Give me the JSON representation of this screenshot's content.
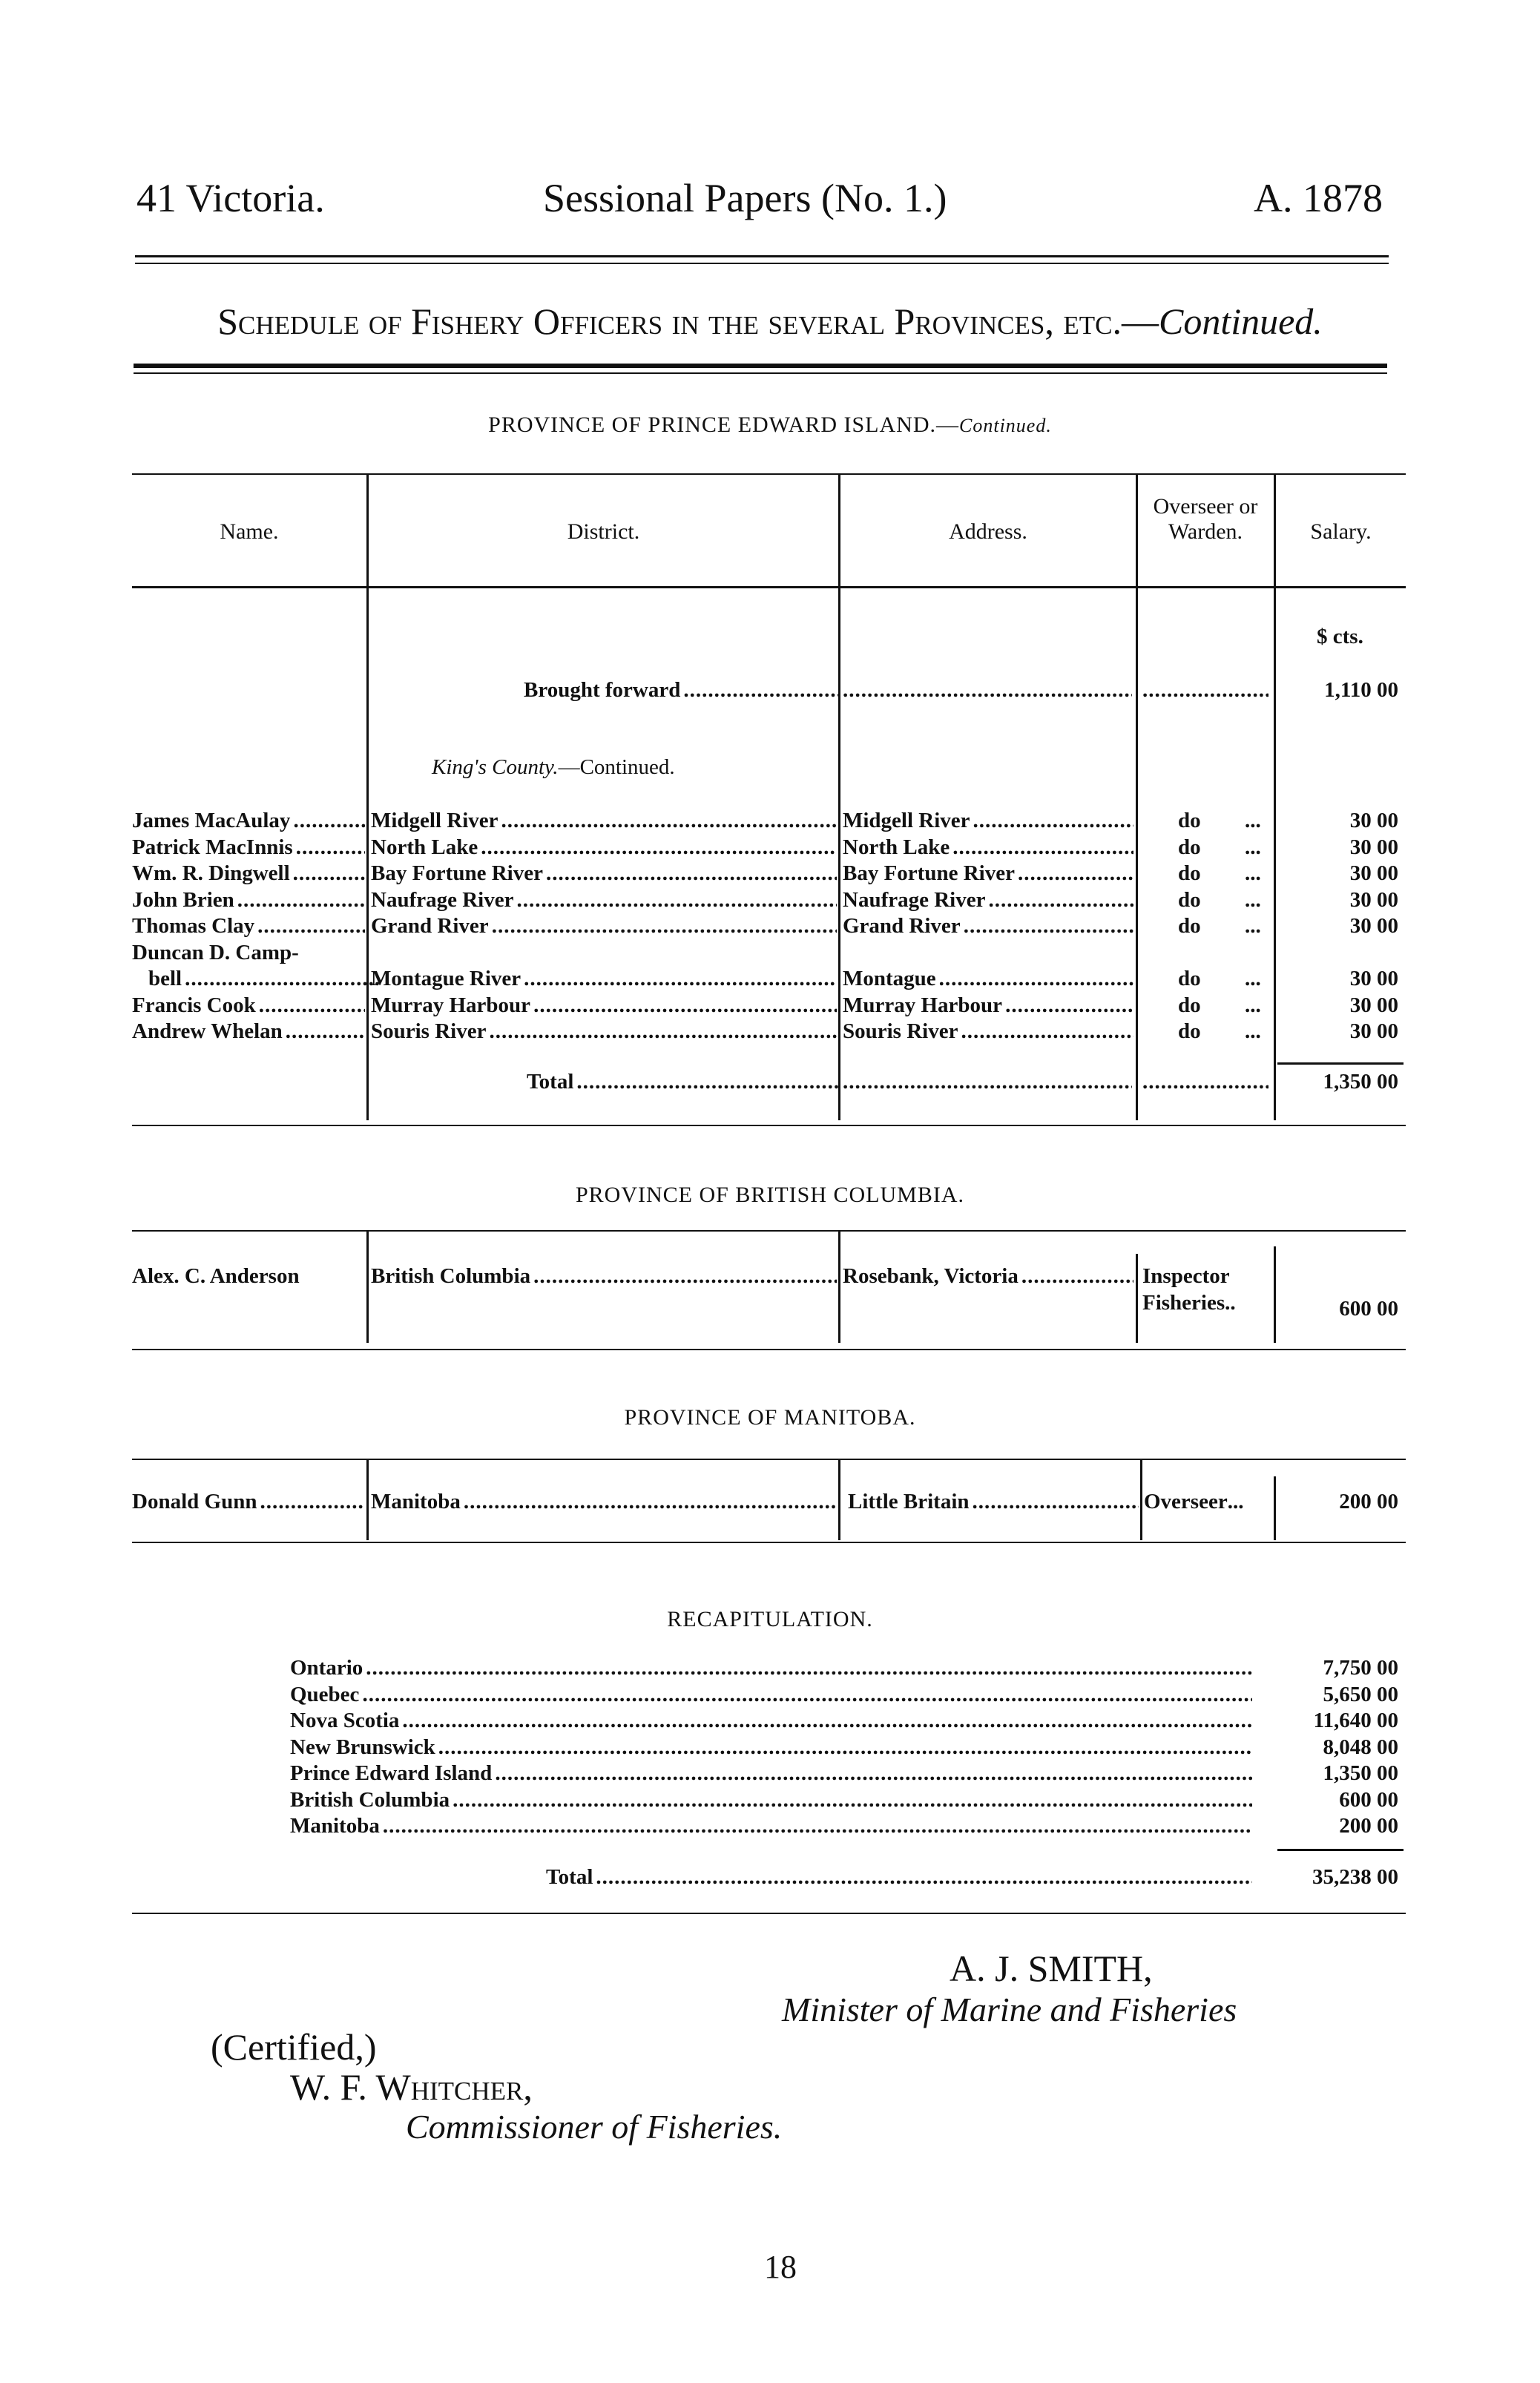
{
  "header": {
    "left": "41 Victoria.",
    "center": "Sessional Papers (No. 1.)",
    "right": "A. 1878"
  },
  "title": {
    "main": "Schedule of Fishery Officers in the several Provinces, etc.—",
    "continued": "Continued."
  },
  "pei": {
    "heading": "PROVINCE OF PRINCE EDWARD ISLAND.—",
    "heading_continued": "Continued.",
    "columns": {
      "name": "Name.",
      "district": "District.",
      "address": "Address.",
      "overseer": "Overseer or Warden.",
      "salary": "Salary."
    },
    "currency": "$  cts.",
    "brought_forward": {
      "label": "Brought forward",
      "salary": "1,110 00"
    },
    "county": {
      "name": "King's County.",
      "suffix": "—Continued."
    },
    "rows": [
      {
        "name": "James MacAulay",
        "district": "Midgell River",
        "address": "Midgell River",
        "role": "do",
        "salary": "30 00"
      },
      {
        "name": "Patrick MacInnis",
        "district": "North Lake",
        "address": "North Lake",
        "role": "do",
        "salary": "30 00"
      },
      {
        "name": "Wm. R. Dingwell",
        "district": "Bay Fortune River",
        "address": "Bay Fortune River",
        "role": "do",
        "salary": "30 00"
      },
      {
        "name": "John Brien",
        "district": "Naufrage River",
        "address": "Naufrage River",
        "role": "do",
        "salary": "30 00"
      },
      {
        "name": "Thomas Clay",
        "district": "Grand River",
        "address": "Grand River",
        "role": "do",
        "salary": "30 00"
      },
      {
        "name": "Duncan D. Camp-",
        "district": "",
        "address": "",
        "role": "",
        "salary": ""
      },
      {
        "name": "bell",
        "district": "Montague River",
        "address": "Montague",
        "role": "do",
        "salary": "30 00"
      },
      {
        "name": "Francis Cook",
        "district": "Murray Harbour",
        "address": "Murray Harbour",
        "role": "do",
        "salary": "30 00"
      },
      {
        "name": "Andrew Whelan",
        "district": "Souris River",
        "address": "Souris River",
        "role": "do",
        "salary": "30 00"
      }
    ],
    "total": {
      "label": "Total",
      "salary": "1,350 00"
    }
  },
  "bc": {
    "heading": "PROVINCE OF BRITISH COLUMBIA.",
    "row": {
      "name": "Alex. C. Anderson",
      "district": "British Columbia",
      "address": "Rosebank, Victoria",
      "role_line1": "Inspector",
      "role_line2": "Fisheries",
      "salary": "600 00"
    }
  },
  "manitoba": {
    "heading": "PROVINCE OF MANITOBA.",
    "row": {
      "name": "Donald Gunn",
      "district": "Manitoba",
      "address": "Little Britain",
      "role": "Overseer",
      "salary": "200 00"
    }
  },
  "recap": {
    "heading": "RECAPITULATION.",
    "rows": [
      {
        "province": "Ontario",
        "amount": "7,750 00"
      },
      {
        "province": "Quebec",
        "amount": "5,650 00"
      },
      {
        "province": "Nova Scotia",
        "amount": "11,640 00"
      },
      {
        "province": "New Brunswick",
        "amount": "8,048 00"
      },
      {
        "province": "Prince Edward Island",
        "amount": "1,350 00"
      },
      {
        "province": "British Columbia",
        "amount": "600 00"
      },
      {
        "province": "Manitoba",
        "amount": "200 00"
      }
    ],
    "total": {
      "label": "Total",
      "amount": "35,238 00"
    }
  },
  "signatures": {
    "minister_name": "A. J. SMITH,",
    "minister_title": "Minister of Marine and Fisheries",
    "certified": "(Certified,)",
    "commissioner_name": "W. F. Whitcher,",
    "commissioner_title": "Commissioner of Fisheries."
  },
  "page_number": "18"
}
